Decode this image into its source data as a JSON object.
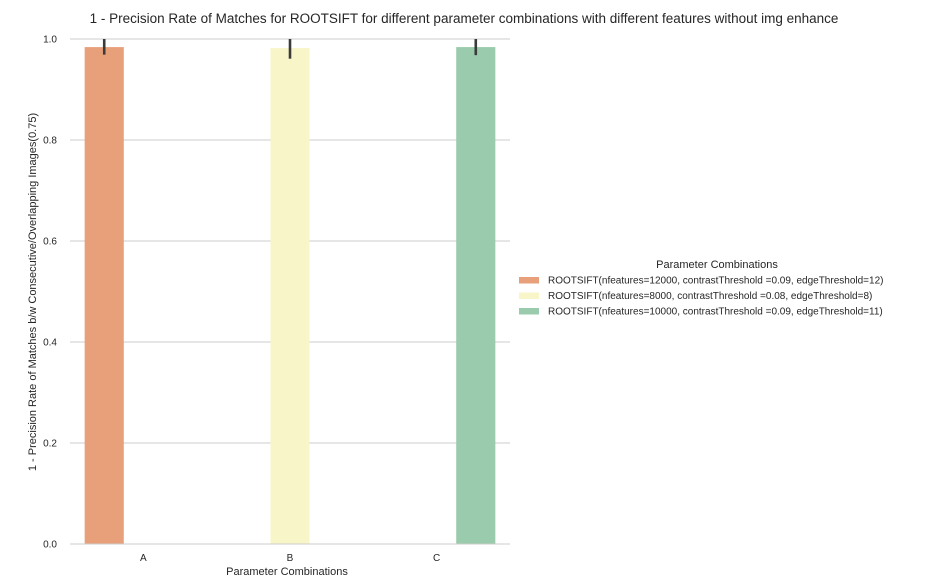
{
  "chart_data": {
    "type": "bar",
    "title": "1 - Precision Rate of Matches for ROOTSIFT for different parameter combinations with different features without img enhance",
    "xlabel": "Parameter Combinations",
    "ylabel": "1 - Precision Rate of Matches b/w Consecutive/Overlapping Images(0.75)",
    "ylim": [
      0,
      1.0
    ],
    "yticks": [
      "0.0",
      "0.2",
      "0.4",
      "0.6",
      "0.8",
      "1.0"
    ],
    "categories": [
      "A",
      "B",
      "C"
    ],
    "grid": "y",
    "legend": {
      "title": "Parameter Combinations",
      "placement": "right"
    },
    "series": [
      {
        "name": "ROOTSIFT(nfeatures=12000, contrastThreshold =0.09, edgeThreshold=12)",
        "color": "#e8a07a",
        "values": [
          0.984,
          null,
          null
        ],
        "error_low": [
          0.969,
          null,
          null
        ],
        "error_high": [
          1.0,
          null,
          null
        ]
      },
      {
        "name": "ROOTSIFT(nfeatures=8000, contrastThreshold =0.08, edgeThreshold=8)",
        "color": "#f8f6c9",
        "values": [
          null,
          0.982,
          null
        ],
        "error_low": [
          null,
          0.961,
          null
        ],
        "error_high": [
          null,
          1.0,
          null
        ]
      },
      {
        "name": "ROOTSIFT(nfeatures=10000, contrastThreshold =0.09, edgeThreshold=11)",
        "color": "#99cbac",
        "values": [
          null,
          null,
          0.984
        ],
        "error_low": [
          null,
          null,
          0.968
        ],
        "error_high": [
          null,
          null,
          1.0
        ]
      }
    ]
  }
}
